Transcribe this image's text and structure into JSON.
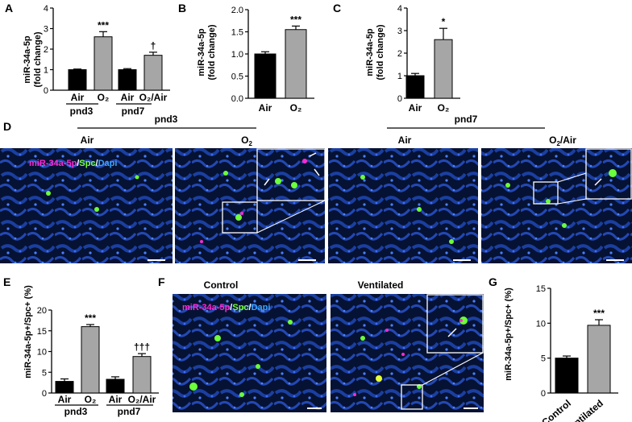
{
  "panel_letters": [
    "A",
    "B",
    "C",
    "D",
    "E",
    "F",
    "G"
  ],
  "chart_data": [
    {
      "panel": "A",
      "type": "bar",
      "ylabel_line1": "miR-34a-5p",
      "ylabel_line2": "(fold change)",
      "ylim": [
        0,
        4
      ],
      "yticks": [
        "0",
        "1",
        "2",
        "3",
        "4"
      ],
      "categories": [
        "Air",
        "O2",
        "Air",
        "O2/Air"
      ],
      "values": [
        1.0,
        2.6,
        1.0,
        1.7
      ],
      "errors": [
        0.03,
        0.25,
        0.05,
        0.15
      ],
      "colors": [
        "#000000",
        "#a6a6a6",
        "#000000",
        "#a6a6a6"
      ],
      "sig": [
        "",
        "***",
        "",
        "†"
      ],
      "groups": [
        "pnd3",
        "pnd7"
      ]
    },
    {
      "panel": "B",
      "type": "bar",
      "ylabel_line1": "miR-34a-5p",
      "ylabel_line2": "(fold change)",
      "ylim": [
        0,
        2.0
      ],
      "yticks": [
        "0.0",
        "0.5",
        "1.0",
        "1.5",
        "2.0"
      ],
      "categories": [
        "Air",
        "O2"
      ],
      "values": [
        1.0,
        1.55
      ],
      "errors": [
        0.05,
        0.08
      ],
      "colors": [
        "#000000",
        "#a6a6a6"
      ],
      "sig": [
        "",
        "***"
      ]
    },
    {
      "panel": "C",
      "type": "bar",
      "ylabel_line1": "miR-34a-5p",
      "ylabel_line2": "(fold change)",
      "ylim": [
        0,
        4
      ],
      "yticks": [
        "0",
        "1",
        "2",
        "3",
        "4"
      ],
      "categories": [
        "Air",
        "O2"
      ],
      "values": [
        1.0,
        2.6
      ],
      "errors": [
        0.1,
        0.5
      ],
      "colors": [
        "#000000",
        "#a6a6a6"
      ],
      "sig": [
        "",
        "*"
      ]
    },
    {
      "panel": "E",
      "type": "bar",
      "ylabel": "miR-34a-5p+/Spc+ (%)",
      "ylim": [
        0,
        20
      ],
      "yticks": [
        "0",
        "5",
        "10",
        "15",
        "20"
      ],
      "categories": [
        "Air",
        "O2",
        "Air",
        "O2/Air"
      ],
      "values": [
        2.8,
        16.0,
        3.3,
        8.8
      ],
      "errors": [
        0.6,
        0.5,
        0.6,
        0.7
      ],
      "colors": [
        "#000000",
        "#a6a6a6",
        "#000000",
        "#a6a6a6"
      ],
      "sig": [
        "",
        "***",
        "",
        "†††"
      ],
      "groups": [
        "pnd3",
        "pnd7"
      ]
    },
    {
      "panel": "G",
      "type": "bar",
      "ylabel": "miR-34a-5p+/Spc+ (%)",
      "ylim": [
        0,
        15
      ],
      "yticks": [
        "0",
        "5",
        "10",
        "15"
      ],
      "categories": [
        "Control",
        "Ventilated"
      ],
      "values": [
        5.0,
        9.7
      ],
      "errors": [
        0.3,
        0.8
      ],
      "colors": [
        "#000000",
        "#a6a6a6"
      ],
      "sig": [
        "",
        "***"
      ]
    }
  ],
  "panel_D": {
    "group_pnd3": "pnd3",
    "group_pnd7": "pnd7",
    "images": [
      "Air",
      "O2",
      "Air",
      "O2/Air"
    ],
    "legend": [
      {
        "text": "miR-34a-5p",
        "color": "#ff2ad4"
      },
      {
        "text": "/",
        "color": "#ffffff"
      },
      {
        "text": "Spc",
        "color": "#7cff3a"
      },
      {
        "text": "/",
        "color": "#ffffff"
      },
      {
        "text": "Dapi",
        "color": "#3da5ff"
      }
    ]
  },
  "panel_F": {
    "images": [
      "Control",
      "Ventilated"
    ],
    "legend": [
      {
        "text": "miR-34a-5p",
        "color": "#ff2ad4"
      },
      {
        "text": "/",
        "color": "#ffffff"
      },
      {
        "text": "Spc",
        "color": "#7cff3a"
      },
      {
        "text": "/",
        "color": "#ffffff"
      },
      {
        "text": "Dapi",
        "color": "#3da5ff"
      }
    ]
  }
}
